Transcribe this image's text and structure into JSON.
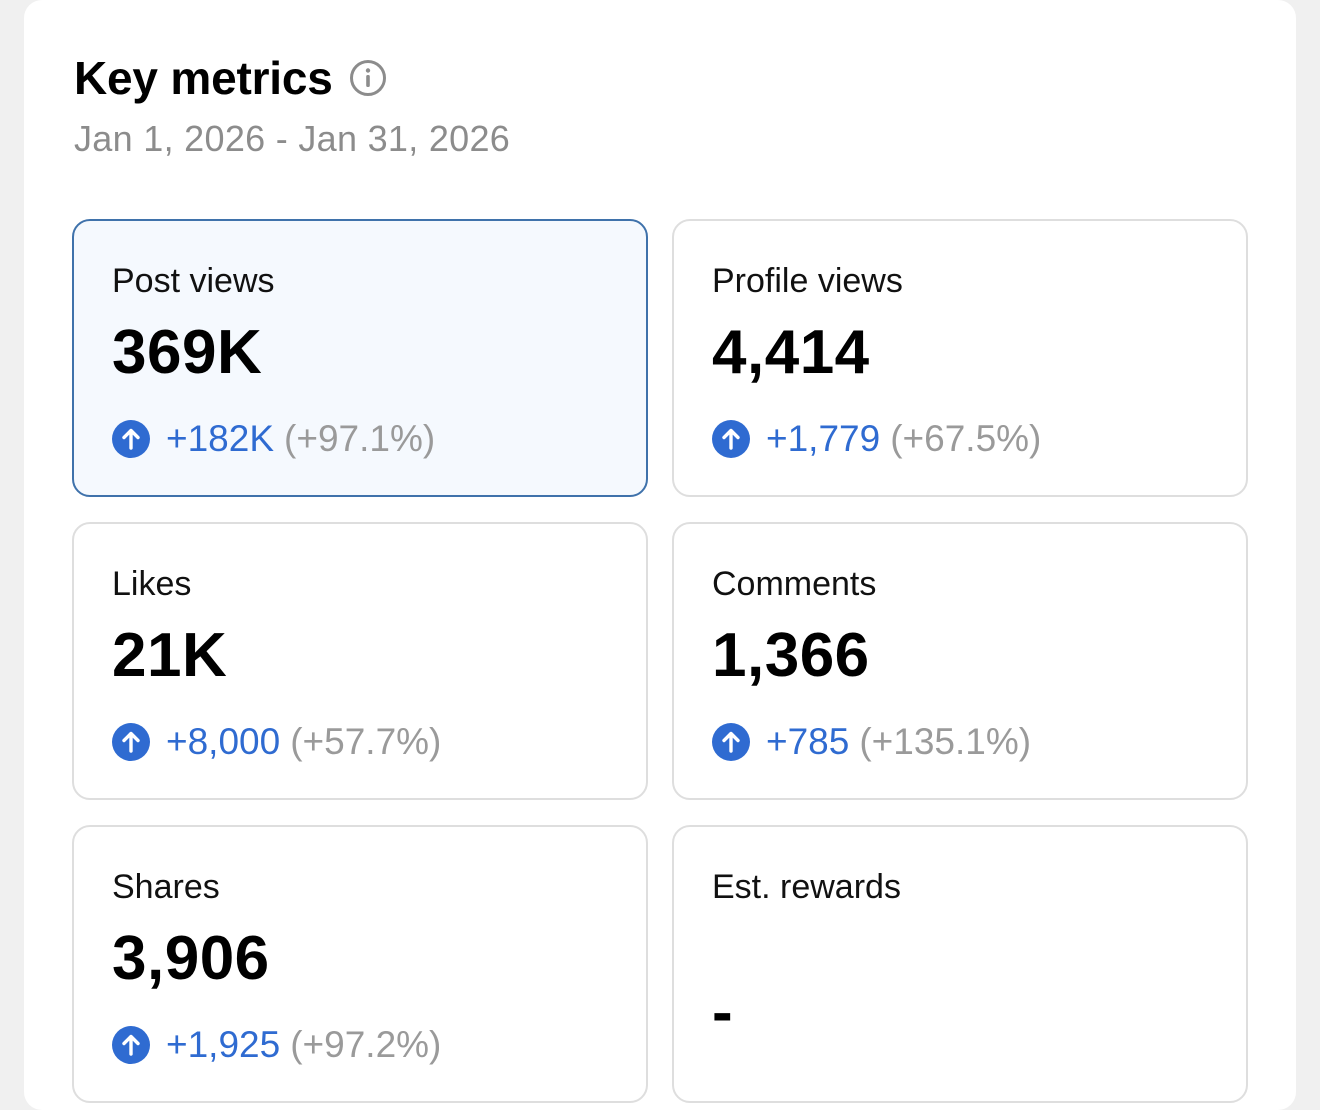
{
  "header": {
    "title": "Key metrics",
    "date_range": "Jan 1, 2026 - Jan 31, 2026"
  },
  "icons": {
    "info": "info-circle-icon",
    "trend_up": "arrow-up-circle-icon"
  },
  "colors": {
    "accent_blue": "#2f6bd1",
    "selected_border": "#3f72ab",
    "selected_bg": "#f5f9fe",
    "muted_gray": "#9a9a9a"
  },
  "metrics": [
    {
      "label": "Post views",
      "value": "369K",
      "delta": "+182K",
      "pct": "(+97.1%)",
      "selected": true
    },
    {
      "label": "Profile views",
      "value": "4,414",
      "delta": "+1,779",
      "pct": "(+67.5%)",
      "selected": false
    },
    {
      "label": "Likes",
      "value": "21K",
      "delta": "+8,000",
      "pct": "(+57.7%)",
      "selected": false
    },
    {
      "label": "Comments",
      "value": "1,366",
      "delta": "+785",
      "pct": "(+135.1%)",
      "selected": false
    },
    {
      "label": "Shares",
      "value": "3,906",
      "delta": "+1,925",
      "pct": "(+97.2%)",
      "selected": false
    },
    {
      "label": "Est. rewards",
      "value": "-"
    }
  ]
}
